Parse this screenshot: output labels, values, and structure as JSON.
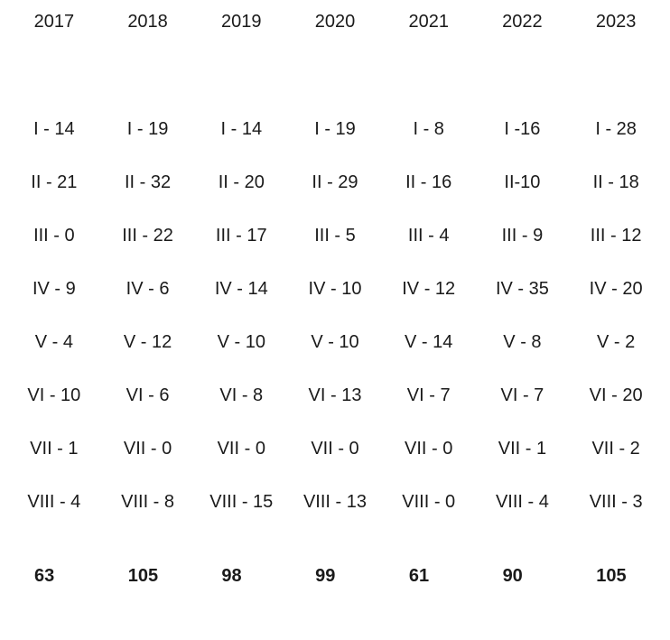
{
  "table": {
    "years": [
      "2017",
      "2018",
      "2019",
      "2020",
      "2021",
      "2022",
      "2023"
    ],
    "rows": [
      {
        "cells": [
          "I - 14",
          "I - 19",
          "I - 14",
          "I - 19",
          "I - 8",
          "I -16",
          "I - 28"
        ]
      },
      {
        "cells": [
          "II - 21",
          "II - 32",
          "II - 20",
          "II - 29",
          "II - 16",
          "II-10",
          "II - 18"
        ]
      },
      {
        "cells": [
          "III - 0",
          "III - 22",
          "III - 17",
          "III - 5",
          "III - 4",
          "III - 9",
          "III - 12"
        ]
      },
      {
        "cells": [
          "IV - 9",
          "IV - 6",
          "IV - 14",
          "IV - 10",
          "IV - 12",
          "IV - 35",
          "IV - 20"
        ]
      },
      {
        "cells": [
          "V - 4",
          "V - 12",
          "V - 10",
          "V - 10",
          "V - 14",
          "V - 8",
          "V - 2"
        ]
      },
      {
        "cells": [
          "VI - 10",
          "VI - 6",
          "VI - 8",
          "VI - 13",
          "VI - 7",
          "VI - 7",
          "VI - 20"
        ]
      },
      {
        "cells": [
          "VII - 1",
          "VII - 0",
          "VII - 0",
          "VII - 0",
          "VII - 0",
          "VII - 1",
          "VII - 2"
        ]
      },
      {
        "cells": [
          "VIII - 4",
          "VIII - 8",
          "VIII - 15",
          "VIII - 13",
          "VIII - 0",
          "VIII - 4",
          "VIII - 3"
        ]
      }
    ],
    "totals": [
      "63",
      "105",
      "98",
      "99",
      "61",
      "90",
      "105"
    ]
  }
}
